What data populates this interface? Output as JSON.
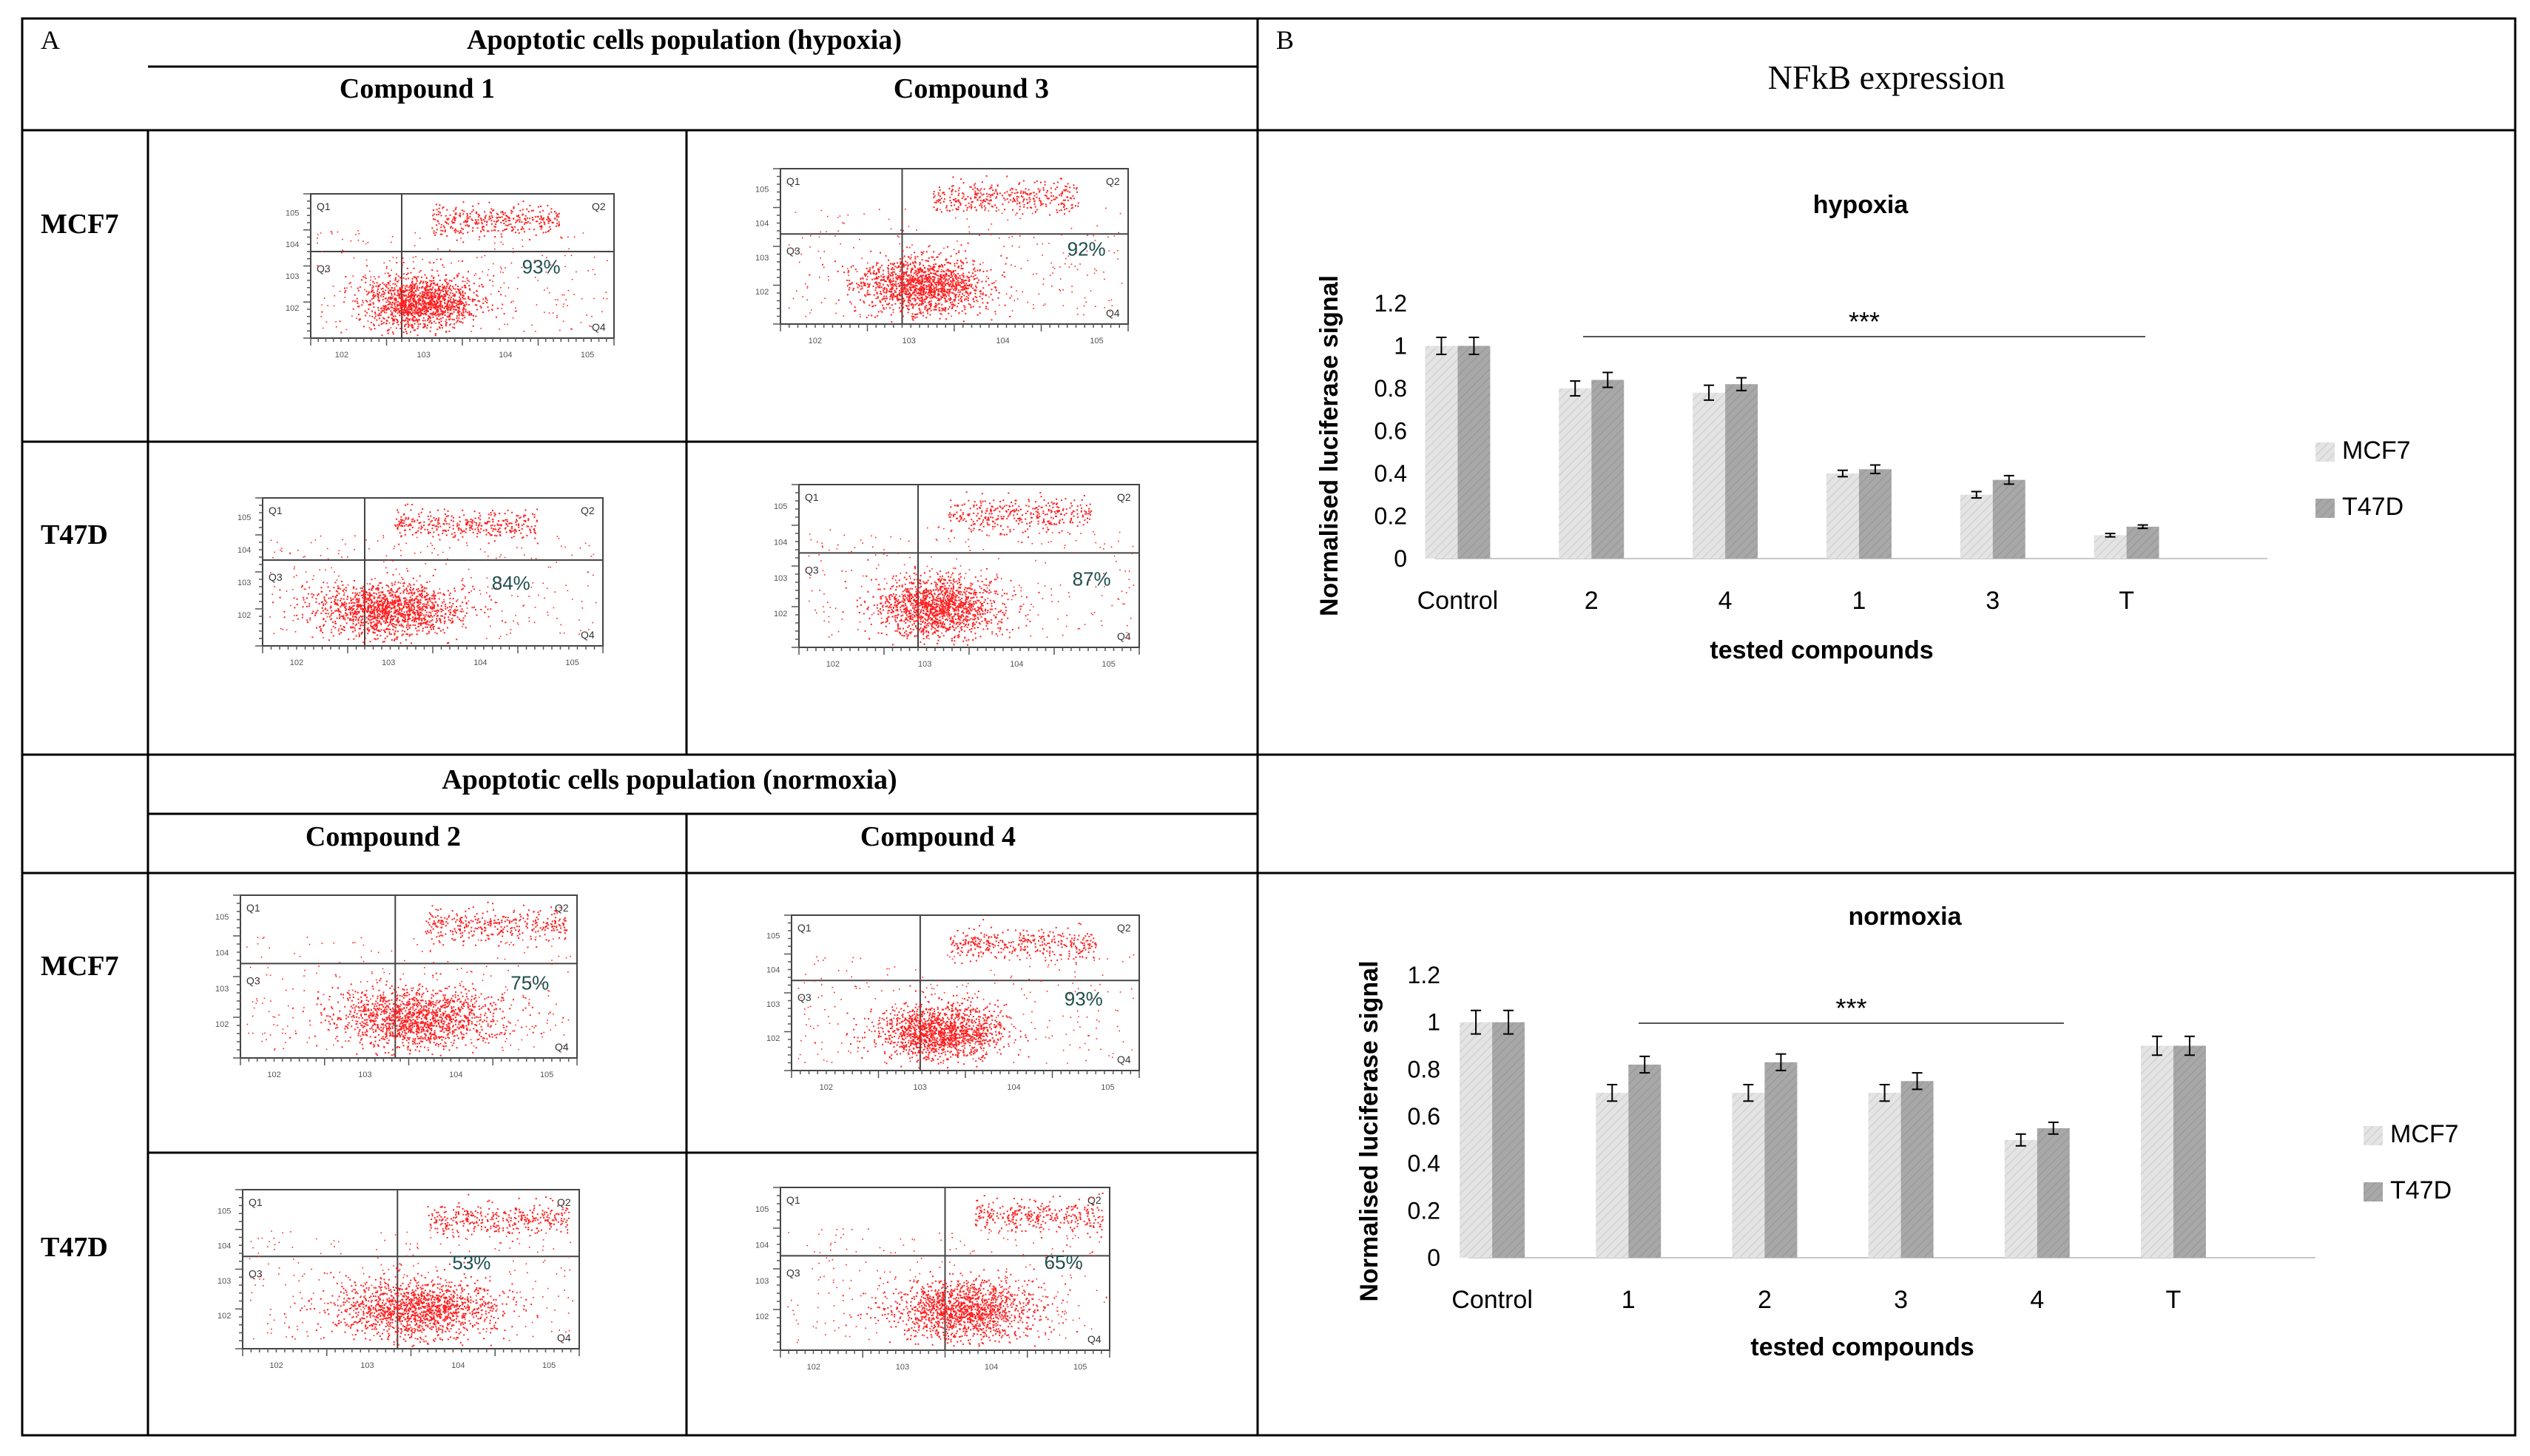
{
  "panel_a": {
    "label": "A",
    "hypoxia_header": "Apoptotic cells  population (hypoxia)",
    "normoxia_header": "Apoptotic cells  population (normoxia)",
    "hypoxia_columns": [
      "Compound 1",
      "Compound 3"
    ],
    "normoxia_columns": [
      "Compound 2",
      "Compound 4"
    ],
    "row_labels": [
      "MCF7",
      "T47D",
      "MCF7",
      "T47D"
    ],
    "quadrant_labels": [
      "Q1",
      "Q2",
      "Q3",
      "Q4"
    ],
    "plots": [
      {
        "cell": "MCF7",
        "compound": "Compound 1",
        "condition": "hypoxia",
        "percent": "93%"
      },
      {
        "cell": "MCF7",
        "compound": "Compound 3",
        "condition": "hypoxia",
        "percent": "92%"
      },
      {
        "cell": "T47D",
        "compound": "Compound 1",
        "condition": "hypoxia",
        "percent": "84%"
      },
      {
        "cell": "T47D",
        "compound": "Compound 3",
        "condition": "hypoxia",
        "percent": "87%"
      },
      {
        "cell": "MCF7",
        "compound": "Compound 2",
        "condition": "normoxia",
        "percent": "75%"
      },
      {
        "cell": "MCF7",
        "compound": "Compound 4",
        "condition": "normoxia",
        "percent": "93%"
      },
      {
        "cell": "T47D",
        "compound": "Compound 2",
        "condition": "normoxia",
        "percent": "53%"
      },
      {
        "cell": "T47D",
        "compound": "Compound 4",
        "condition": "normoxia",
        "percent": "65%"
      }
    ],
    "dot_color": "#ff2020"
  },
  "panel_b": {
    "label": "B",
    "title": "NFkB expression"
  },
  "chart_data": [
    {
      "type": "bar",
      "title": "hypoxia",
      "xlabel": "tested compounds",
      "ylabel": "Normalised luciferase signal",
      "categories": [
        "Control",
        "2",
        "4",
        "1",
        "3",
        "T"
      ],
      "ylim": [
        0,
        1.2
      ],
      "yticks": [
        "0",
        "0.2",
        "0.4",
        "0.6",
        "0.8",
        "1",
        "1.2"
      ],
      "annotation": "***",
      "series": [
        {
          "name": "MCF7",
          "color": "#dcdcdc",
          "values": [
            1.0,
            0.8,
            0.78,
            0.4,
            0.3,
            0.11
          ],
          "errors": [
            0.04,
            0.035,
            0.035,
            0.015,
            0.015,
            0.008
          ]
        },
        {
          "name": "T47D",
          "color": "#a6a6a6",
          "values": [
            1.0,
            0.84,
            0.82,
            0.42,
            0.37,
            0.15
          ],
          "errors": [
            0.04,
            0.035,
            0.03,
            0.02,
            0.02,
            0.008
          ]
        }
      ],
      "legend": "right"
    },
    {
      "type": "bar",
      "title": "normoxia",
      "xlabel": "tested compounds",
      "ylabel": "Normalised luciferase signal",
      "categories": [
        "Control",
        "1",
        "2",
        "3",
        "4",
        "T"
      ],
      "ylim": [
        0,
        1.2
      ],
      "yticks": [
        "0",
        "0.2",
        "0.4",
        "0.6",
        "0.8",
        "1",
        "1.2"
      ],
      "annotation": "***",
      "series": [
        {
          "name": "MCF7",
          "color": "#dcdcdc",
          "values": [
            1.0,
            0.7,
            0.7,
            0.7,
            0.5,
            0.9
          ],
          "errors": [
            0.05,
            0.035,
            0.035,
            0.035,
            0.025,
            0.04
          ]
        },
        {
          "name": "T47D",
          "color": "#a6a6a6",
          "values": [
            1.0,
            0.82,
            0.83,
            0.75,
            0.55,
            0.9
          ],
          "errors": [
            0.05,
            0.035,
            0.035,
            0.035,
            0.025,
            0.04
          ]
        }
      ],
      "legend": "right"
    }
  ]
}
